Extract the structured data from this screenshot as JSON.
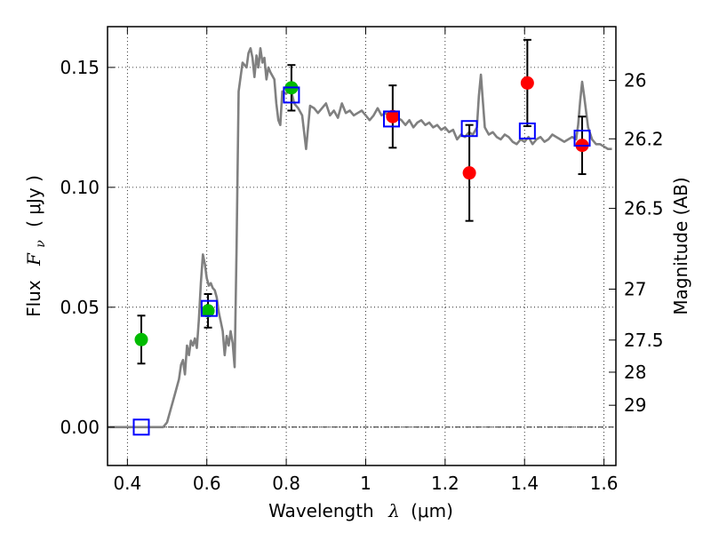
{
  "chart_data": {
    "type": "scatter",
    "xlabel": {
      "text": "Wavelength",
      "symbol": "λ",
      "unit": "(μm)"
    },
    "ylabel": {
      "text": "Flux",
      "symbol": "F",
      "subscript": "ν",
      "unit": "( μJy )"
    },
    "y2label": "Magnitude (AB)",
    "xlim": [
      0.35,
      1.63
    ],
    "ylim": [
      -0.016,
      0.167
    ],
    "grid": true,
    "x_ticks": [
      0.4,
      0.6,
      0.8,
      1.0,
      1.2,
      1.4,
      1.6
    ],
    "x_tick_labels": [
      "0.4",
      "0.6",
      "0.8",
      "1",
      "1.2",
      "1.4",
      "1.6"
    ],
    "y_ticks": [
      0.0,
      0.05,
      0.1,
      0.15
    ],
    "y_tick_labels": [
      "0.00",
      "0.05",
      "0.10",
      "0.15"
    ],
    "y2_ticks": [
      {
        "label": "26",
        "mag": 26
      },
      {
        "label": "26.2",
        "mag": 26.2
      },
      {
        "label": "26.5",
        "mag": 26.5
      },
      {
        "label": "27",
        "mag": 27
      },
      {
        "label": "27.5",
        "mag": 27.5
      },
      {
        "label": "28",
        "mag": 28
      },
      {
        "label": "29",
        "mag": 29
      }
    ],
    "zero_line": 0.0,
    "colors": {
      "sed_line": "#808080",
      "green_points": "#00bb00",
      "red_points": "#ff0000",
      "model_boxes": "#0000ff",
      "errorbars": "#000000",
      "zero_line": "#000000"
    },
    "series": [
      {
        "style": "line",
        "x": [
          0.35,
          0.49,
          0.5,
          0.51,
          0.52,
          0.53,
          0.535,
          0.54,
          0.545,
          0.55,
          0.555,
          0.56,
          0.565,
          0.57,
          0.575,
          0.58,
          0.585,
          0.59,
          0.595,
          0.6,
          0.605,
          0.61,
          0.615,
          0.62,
          0.625,
          0.63,
          0.635,
          0.64,
          0.645,
          0.65,
          0.655,
          0.66,
          0.665,
          0.67,
          0.675,
          0.68,
          0.69,
          0.7,
          0.705,
          0.71,
          0.715,
          0.72,
          0.725,
          0.73,
          0.735,
          0.74,
          0.745,
          0.75,
          0.755,
          0.76,
          0.77,
          0.775,
          0.78,
          0.785,
          0.79,
          0.8,
          0.81,
          0.82,
          0.83,
          0.84,
          0.85,
          0.86,
          0.87,
          0.88,
          0.89,
          0.9,
          0.91,
          0.92,
          0.93,
          0.94,
          0.95,
          0.96,
          0.97,
          0.98,
          0.99,
          1.0,
          1.01,
          1.02,
          1.03,
          1.04,
          1.05,
          1.06,
          1.07,
          1.08,
          1.09,
          1.1,
          1.11,
          1.12,
          1.13,
          1.14,
          1.15,
          1.16,
          1.17,
          1.18,
          1.19,
          1.2,
          1.21,
          1.22,
          1.23,
          1.24,
          1.25,
          1.26,
          1.27,
          1.28,
          1.285,
          1.29,
          1.3,
          1.31,
          1.32,
          1.33,
          1.34,
          1.35,
          1.36,
          1.37,
          1.38,
          1.39,
          1.4,
          1.41,
          1.42,
          1.43,
          1.44,
          1.45,
          1.46,
          1.47,
          1.48,
          1.49,
          1.5,
          1.51,
          1.52,
          1.53,
          1.535,
          1.54,
          1.545,
          1.55,
          1.56,
          1.57,
          1.58,
          1.59,
          1.6,
          1.61,
          1.62
        ],
        "y": [
          0.0,
          0.0,
          0.002,
          0.008,
          0.014,
          0.02,
          0.026,
          0.028,
          0.022,
          0.034,
          0.03,
          0.036,
          0.034,
          0.037,
          0.033,
          0.045,
          0.06,
          0.072,
          0.068,
          0.062,
          0.059,
          0.06,
          0.058,
          0.057,
          0.054,
          0.048,
          0.044,
          0.04,
          0.03,
          0.038,
          0.034,
          0.04,
          0.035,
          0.025,
          0.075,
          0.14,
          0.152,
          0.15,
          0.156,
          0.158,
          0.154,
          0.146,
          0.155,
          0.15,
          0.158,
          0.152,
          0.154,
          0.145,
          0.15,
          0.148,
          0.145,
          0.135,
          0.128,
          0.126,
          0.14,
          0.139,
          0.142,
          0.135,
          0.133,
          0.13,
          0.116,
          0.134,
          0.133,
          0.131,
          0.133,
          0.135,
          0.13,
          0.132,
          0.129,
          0.135,
          0.131,
          0.132,
          0.13,
          0.131,
          0.132,
          0.13,
          0.128,
          0.13,
          0.133,
          0.13,
          0.131,
          0.129,
          0.128,
          0.129,
          0.128,
          0.126,
          0.128,
          0.125,
          0.127,
          0.128,
          0.126,
          0.127,
          0.125,
          0.126,
          0.124,
          0.125,
          0.123,
          0.124,
          0.12,
          0.122,
          0.121,
          0.123,
          0.122,
          0.125,
          0.138,
          0.147,
          0.125,
          0.122,
          0.123,
          0.121,
          0.12,
          0.122,
          0.121,
          0.119,
          0.118,
          0.12,
          0.119,
          0.121,
          0.118,
          0.12,
          0.121,
          0.119,
          0.12,
          0.122,
          0.121,
          0.12,
          0.119,
          0.12,
          0.121,
          0.12,
          0.126,
          0.136,
          0.144,
          0.138,
          0.125,
          0.12,
          0.118,
          0.118,
          0.117,
          0.116,
          0.116
        ]
      },
      {
        "style": "markers",
        "marker": "circle",
        "color": "green",
        "x": [
          0.435,
          0.603,
          0.813
        ],
        "y": [
          0.0365,
          0.0485,
          0.1415
        ],
        "yerr": [
          0.01,
          0.007,
          0.0095
        ]
      },
      {
        "style": "markers",
        "marker": "circle",
        "color": "red",
        "x": [
          1.068,
          1.261,
          1.407,
          1.545
        ],
        "y": [
          0.1295,
          0.106,
          0.1435,
          0.1175
        ],
        "yerr": [
          0.013,
          0.02,
          0.018,
          0.012
        ]
      },
      {
        "style": "markers",
        "marker": "open-square",
        "color": "blue",
        "x": [
          0.435,
          0.606,
          0.813,
          1.065,
          1.261,
          1.407,
          1.545
        ],
        "y": [
          0.0,
          0.0495,
          0.1385,
          0.1285,
          0.1245,
          0.1235,
          0.1205
        ]
      }
    ]
  }
}
